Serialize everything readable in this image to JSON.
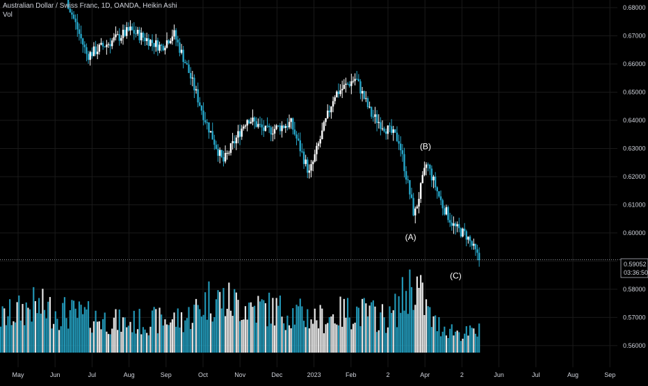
{
  "header": {
    "title": "Australian Dollar / Swiss Franc, 1D, OANDA, Heikin Ashi",
    "volume_label": "Vol"
  },
  "price_badge": {
    "price": "0.59052",
    "countdown": "03:36:50"
  },
  "colors": {
    "background": "#000000",
    "up_candle": "#ffffff",
    "down_candle": "#26a6c9",
    "grid": "#1a1a1a",
    "axis_text": "#d1d4dc",
    "price_line": "#9aa0a8"
  },
  "chart_data": {
    "type": "candlestick",
    "style": "Heikin Ashi",
    "symbol": "Australian Dollar / Swiss Franc",
    "timeframe": "1D",
    "source": "OANDA",
    "y_axis": {
      "ticks": [
        "0.68000",
        "0.67000",
        "0.66000",
        "0.65000",
        "0.64000",
        "0.63000",
        "0.62000",
        "0.61000",
        "0.60000",
        "0.59000",
        "0.58000",
        "0.57000",
        "0.56000"
      ],
      "range": [
        0.5575,
        0.681
      ],
      "position": "right"
    },
    "x_axis": {
      "ticks": [
        "May",
        "Jun",
        "Jul",
        "Aug",
        "Sep",
        "Oct",
        "Nov",
        "Dec",
        "2023",
        "Feb",
        "2",
        "Apr",
        "2",
        "Jun",
        "Jul",
        "Aug",
        "Sep"
      ]
    },
    "last_price": 0.59052,
    "wave_labels": [
      {
        "text": "(A)",
        "price": 0.5975
      },
      {
        "text": "(B)",
        "price": 0.6297
      },
      {
        "text": "(C)",
        "price": 0.5838
      }
    ],
    "price_path": [
      {
        "pos": 0.0,
        "close": 0.6985
      },
      {
        "pos": 0.1,
        "close": 0.687
      },
      {
        "pos": 0.14,
        "close": 0.663
      },
      {
        "pos": 0.21,
        "close": 0.672
      },
      {
        "pos": 0.26,
        "close": 0.666
      },
      {
        "pos": 0.28,
        "close": 0.671
      },
      {
        "pos": 0.3,
        "close": 0.66
      },
      {
        "pos": 0.33,
        "close": 0.641
      },
      {
        "pos": 0.36,
        "close": 0.625
      },
      {
        "pos": 0.4,
        "close": 0.641
      },
      {
        "pos": 0.43,
        "close": 0.636
      },
      {
        "pos": 0.47,
        "close": 0.639
      },
      {
        "pos": 0.5,
        "close": 0.621
      },
      {
        "pos": 0.54,
        "close": 0.649
      },
      {
        "pos": 0.575,
        "close": 0.655
      },
      {
        "pos": 0.6,
        "close": 0.642
      },
      {
        "pos": 0.645,
        "close": 0.633
      },
      {
        "pos": 0.67,
        "close": 0.606
      },
      {
        "pos": 0.69,
        "close": 0.625
      },
      {
        "pos": 0.715,
        "close": 0.61
      },
      {
        "pos": 0.735,
        "close": 0.602
      },
      {
        "pos": 0.755,
        "close": 0.599
      },
      {
        "pos": 0.775,
        "close": 0.5905
      }
    ],
    "volume_scale": {
      "min": 0.5575,
      "max": 0.5875
    },
    "volume_profile": [
      {
        "pos": 0.0,
        "v": 0.4
      },
      {
        "pos": 0.05,
        "v": 0.55
      },
      {
        "pos": 0.12,
        "v": 0.45
      },
      {
        "pos": 0.2,
        "v": 0.35
      },
      {
        "pos": 0.3,
        "v": 0.4
      },
      {
        "pos": 0.34,
        "v": 0.65
      },
      {
        "pos": 0.4,
        "v": 0.55
      },
      {
        "pos": 0.45,
        "v": 0.5
      },
      {
        "pos": 0.52,
        "v": 0.4
      },
      {
        "pos": 0.57,
        "v": 0.5
      },
      {
        "pos": 0.63,
        "v": 0.4
      },
      {
        "pos": 0.67,
        "v": 0.85
      },
      {
        "pos": 0.7,
        "v": 0.35
      },
      {
        "pos": 0.75,
        "v": 0.22
      },
      {
        "pos": 0.775,
        "v": 0.25
      }
    ],
    "grid": true,
    "legend": "top-left"
  }
}
